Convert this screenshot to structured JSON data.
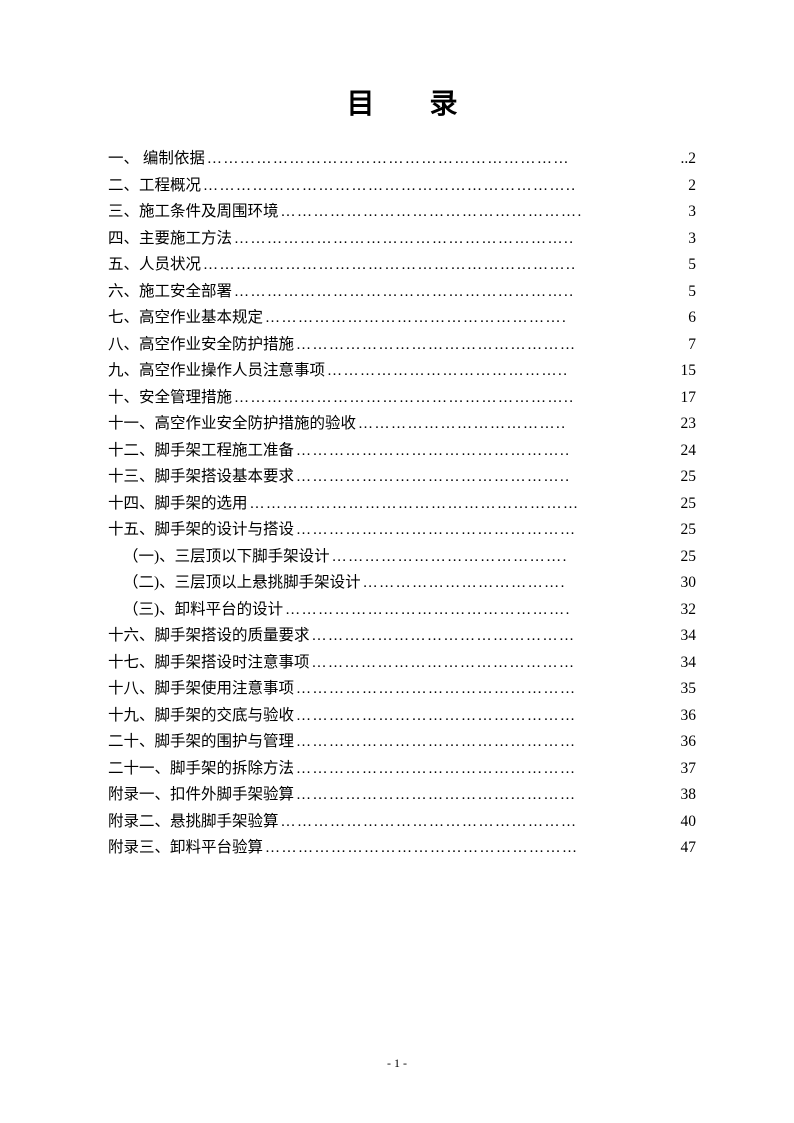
{
  "title": "目 录",
  "footer_page": "- 1 -",
  "toc": [
    {
      "label": "一、 编制依据",
      "leader": "…………………………………………………………",
      "page": "..2",
      "indent": false
    },
    {
      "label": "二、工程概况",
      "leader": "…………………………………………………………..",
      "page": "2",
      "indent": false
    },
    {
      "label": "三、施工条件及周围环境",
      "leader": "……………………………………………….",
      "page": "3",
      "indent": false
    },
    {
      "label": "四、主要施工方法",
      "leader": "……………………………………………………..",
      "page": "3",
      "indent": false
    },
    {
      "label": "五、人员状况",
      "leader": "…………………………………………………………..",
      "page": "5",
      "indent": false
    },
    {
      "label": "六、施工安全部署",
      "leader": "……………………………………………………..",
      "page": "5",
      "indent": false
    },
    {
      "label": "七、高空作业基本规定",
      "leader": "……………………………………………….",
      "page": "6",
      "indent": false
    },
    {
      "label": "八、高空作业安全防护措施",
      "leader": "……………………………………………",
      "page": "7",
      "indent": false
    },
    {
      "label": "九、高空作业操作人员注意事项",
      "leader": "……………………………………..",
      "page": "15",
      "indent": false
    },
    {
      "label": "十、安全管理措施",
      "leader": "……………………………………………………..",
      "page": "17",
      "indent": false
    },
    {
      "label": "十一、高空作业安全防护措施的验收",
      "leader": "………………………………..",
      "page": "23",
      "indent": false
    },
    {
      "label": "十二、脚手架工程施工准备",
      "leader": "…………………………………………..",
      "page": "24",
      "indent": false
    },
    {
      "label": "十三、脚手架搭设基本要求",
      "leader": "…………………………………………..",
      "page": "25",
      "indent": false
    },
    {
      "label": "十四、脚手架的选用",
      "leader": "……………………………………………………",
      "page": "25",
      "indent": false
    },
    {
      "label": "十五、脚手架的设计与搭设",
      "leader": "……………………………………………",
      "page": "25",
      "indent": false
    },
    {
      "label": "（一)、三层顶以下脚手架设计",
      "leader": "…………………………………….",
      "page": "25",
      "indent": true
    },
    {
      "label": "（二)、三层顶以上悬挑脚手架设计",
      "leader": "……………………………….",
      "page": "30",
      "indent": true
    },
    {
      "label": "（三)、卸料平台的设计",
      "leader": "…………………………………………….",
      "page": "32",
      "indent": true
    },
    {
      "label": "十六、脚手架搭设的质量要求",
      "leader": "…………………………………………",
      "page": "34",
      "indent": false
    },
    {
      "label": "十七、脚手架搭设时注意事项",
      "leader": "…………………………………………",
      "page": "34",
      "indent": false
    },
    {
      "label": "十八、脚手架使用注意事项",
      "leader": "……………………………………………",
      "page": "35",
      "indent": false
    },
    {
      "label": "十九、脚手架的交底与验收",
      "leader": "……………………………………………",
      "page": "36",
      "indent": false
    },
    {
      "label": "二十、脚手架的围护与管理",
      "leader": "……………………………………………",
      "page": "36",
      "indent": false
    },
    {
      "label": "二十一、脚手架的拆除方法",
      "leader": "……………………………………………",
      "page": "37",
      "indent": false
    },
    {
      "label": "附录一、扣件外脚手架验算",
      "leader": "……………………………………………",
      "page": "38",
      "indent": false
    },
    {
      "label": "附录二、悬挑脚手架验算",
      "leader": "………………………………………………",
      "page": "40",
      "indent": false
    },
    {
      "label": "附录三、卸料平台验算",
      "leader": "…………………………………………………",
      "page": "47",
      "indent": false
    }
  ]
}
